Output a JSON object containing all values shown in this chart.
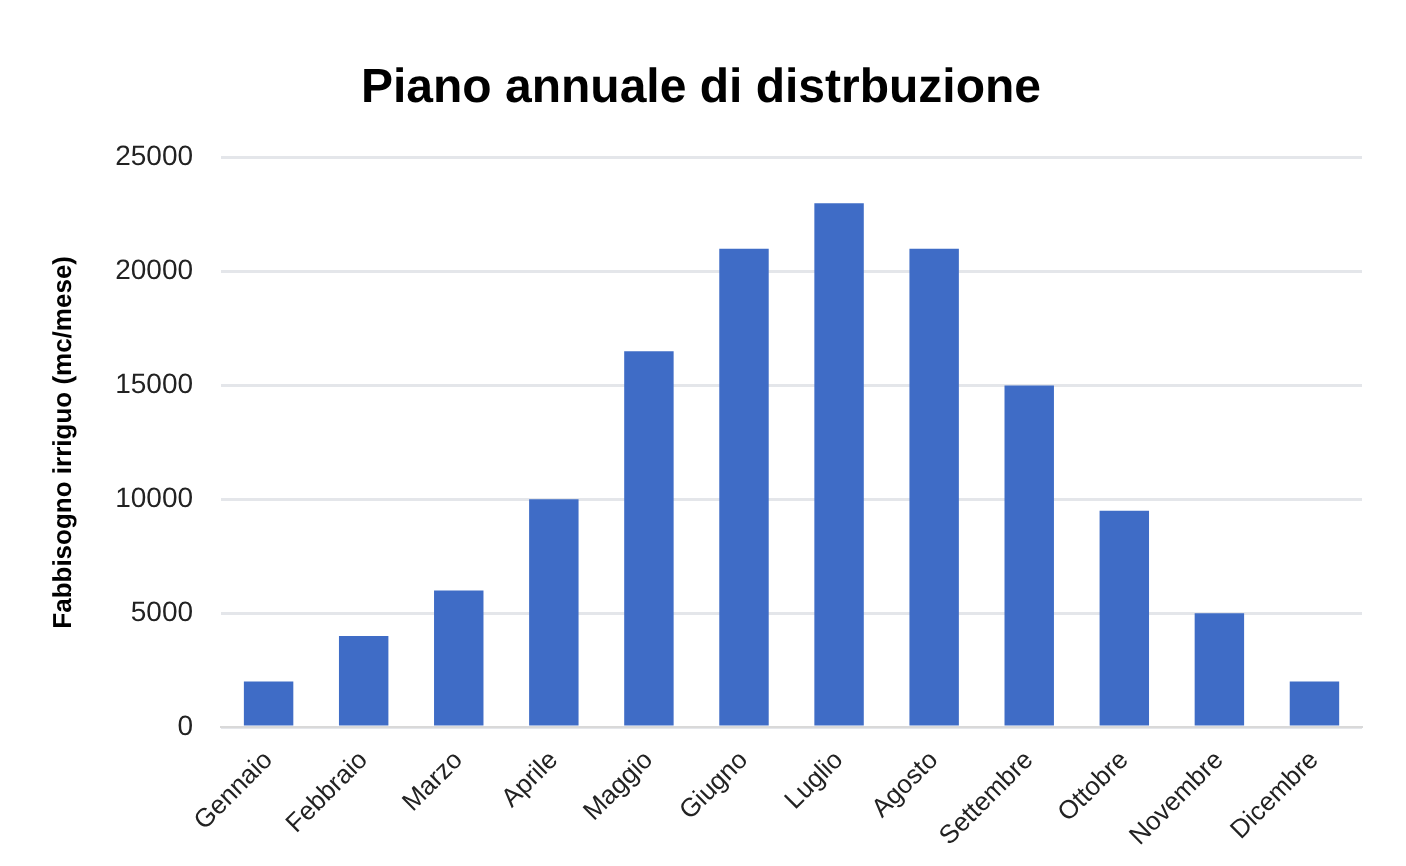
{
  "chart_data": {
    "type": "bar",
    "title": "Piano annuale di distrbuzione",
    "ylabel": "Fabbisogno irriguo (mc/mese)",
    "categories": [
      "Gennaio",
      "Febbraio",
      "Marzo",
      "Aprile",
      "Maggio",
      "Giugno",
      "Luglio",
      "Agosto",
      "Settembre",
      "Ottobre",
      "Novembre",
      "Dicembre"
    ],
    "values": [
      2000,
      4000,
      6000,
      10000,
      16500,
      21000,
      23000,
      21000,
      15000,
      9500,
      5000,
      2000
    ],
    "color": "#3f6cc6",
    "ylim": [
      0,
      25000
    ],
    "yticks": [
      0,
      5000,
      10000,
      15000,
      20000,
      25000
    ],
    "grid": "y",
    "legend": false
  }
}
